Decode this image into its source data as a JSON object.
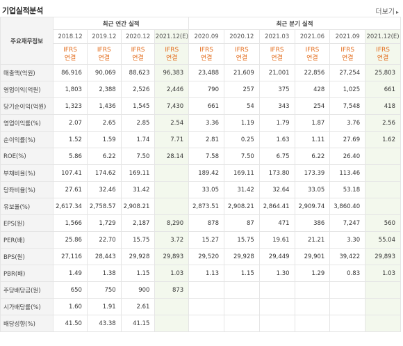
{
  "header": {
    "title": "기업실적분석",
    "more_label": "더보기"
  },
  "table": {
    "item_header": "주요재무정보",
    "groups": {
      "annual": "최근 연간 실적",
      "quarter": "최근 분기 실적"
    },
    "periods": [
      "2018.12",
      "2019.12",
      "2020.12",
      "2021.12(E)",
      "2020.09",
      "2020.12",
      "2021.03",
      "2021.06",
      "2021.09",
      "2021.12(E)"
    ],
    "std": [
      "IFRS",
      "IFRS",
      "IFRS",
      "IFRS",
      "IFRS",
      "IFRS",
      "IFRS",
      "IFRS",
      "IFRS",
      "IFRS"
    ],
    "con": [
      "연결",
      "연결",
      "연결",
      "연결",
      "연결",
      "연결",
      "연결",
      "연결",
      "연결",
      "연결"
    ],
    "rows": [
      {
        "label": "매출액(억원)",
        "values": [
          "86,916",
          "90,069",
          "88,623",
          "96,383",
          "23,488",
          "21,609",
          "21,001",
          "22,856",
          "27,254",
          "25,803"
        ]
      },
      {
        "label": "영업이익(억원)",
        "values": [
          "1,803",
          "2,388",
          "2,526",
          "2,446",
          "790",
          "257",
          "375",
          "428",
          "1,025",
          "661"
        ]
      },
      {
        "label": "당기순이익(억원)",
        "values": [
          "1,323",
          "1,436",
          "1,545",
          "7,430",
          "661",
          "54",
          "343",
          "254",
          "7,548",
          "418"
        ]
      },
      {
        "label": "영업이익률(%)",
        "values": [
          "2.07",
          "2.65",
          "2.85",
          "2.54",
          "3.36",
          "1.19",
          "1.79",
          "1.87",
          "3.76",
          "2.56"
        ]
      },
      {
        "label": "순이익률(%)",
        "values": [
          "1.52",
          "1.59",
          "1.74",
          "7.71",
          "2.81",
          "0.25",
          "1.63",
          "1.11",
          "27.69",
          "1.62"
        ]
      },
      {
        "label": "ROE(%)",
        "values": [
          "5.86",
          "6.22",
          "7.50",
          "28.14",
          "7.58",
          "7.50",
          "6.75",
          "6.22",
          "26.40",
          ""
        ]
      },
      {
        "label": "부채비율(%)",
        "values": [
          "107.41",
          "174.62",
          "169.11",
          "",
          "189.42",
          "169.11",
          "173.80",
          "173.39",
          "113.46",
          ""
        ]
      },
      {
        "label": "당좌비율(%)",
        "values": [
          "27.61",
          "32.46",
          "31.42",
          "",
          "33.05",
          "31.42",
          "32.64",
          "33.05",
          "53.18",
          ""
        ]
      },
      {
        "label": "유보율(%)",
        "values": [
          "2,617.34",
          "2,758.57",
          "2,908.21",
          "",
          "2,873.51",
          "2,908.21",
          "2,864.41",
          "2,909.74",
          "3,860.40",
          ""
        ]
      },
      {
        "label": "EPS(원)",
        "values": [
          "1,566",
          "1,729",
          "2,187",
          "8,290",
          "878",
          "87",
          "471",
          "386",
          "7,247",
          "560"
        ]
      },
      {
        "label": "PER(배)",
        "values": [
          "25.86",
          "22.70",
          "15.75",
          "3.72",
          "15.27",
          "15.75",
          "19.61",
          "21.21",
          "3.30",
          "55.04"
        ]
      },
      {
        "label": "BPS(원)",
        "values": [
          "27,116",
          "28,443",
          "29,928",
          "29,893",
          "29,520",
          "29,928",
          "29,449",
          "29,901",
          "39,422",
          "29,893"
        ]
      },
      {
        "label": "PBR(배)",
        "values": [
          "1.49",
          "1.38",
          "1.15",
          "1.03",
          "1.13",
          "1.15",
          "1.30",
          "1.29",
          "0.83",
          "1.03"
        ]
      },
      {
        "label": "주당배당금(원)",
        "values": [
          "650",
          "750",
          "900",
          "873",
          "",
          "",
          "",
          "",
          "",
          ""
        ]
      },
      {
        "label": "시가배당률(%)",
        "values": [
          "1.60",
          "1.91",
          "2.61",
          "",
          "",
          "",
          "",
          "",
          "",
          ""
        ]
      },
      {
        "label": "배당성향(%)",
        "values": [
          "41.50",
          "43.38",
          "41.15",
          "",
          "",
          "",
          "",
          "",
          "",
          ""
        ]
      }
    ]
  }
}
